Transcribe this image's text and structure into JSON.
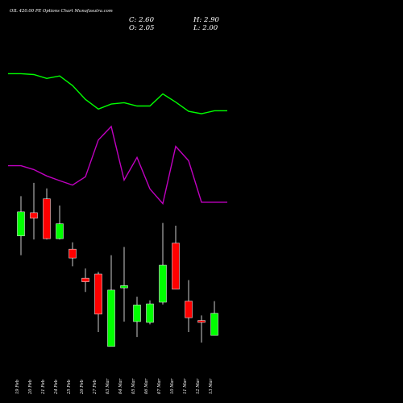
{
  "chart_data": {
    "type": "candlestick",
    "title": "OIL 420.00 PE Options Chart Munafasutra.com",
    "ohlc_readout": {
      "close": "C: 2.60",
      "high": "H: 2.90",
      "open": "O: 2.05",
      "low": "L: 2.00"
    },
    "categories": [
      "19 Feb",
      "20 Feb",
      "21 Feb",
      "24 Feb",
      "25 Feb",
      "26 Feb",
      "27 Feb",
      "03 Mar",
      "04 Mar",
      "05 Mar",
      "06 Mar",
      "07 Mar",
      "10 Mar",
      "11 Mar",
      "12 Mar",
      "13 Mar"
    ],
    "candles": [
      {
        "open": 3.18,
        "close": 4.05,
        "high": 4.62,
        "low": 2.48,
        "direction": "up"
      },
      {
        "open": 4.02,
        "close": 3.82,
        "high": 5.1,
        "low": 3.05,
        "direction": "down"
      },
      {
        "open": 4.52,
        "close": 3.08,
        "high": 4.9,
        "low": 3.05,
        "direction": "down"
      },
      {
        "open": 3.08,
        "close": 3.62,
        "high": 4.28,
        "low": 3.05,
        "direction": "up"
      },
      {
        "open": 2.7,
        "close": 2.38,
        "high": 2.95,
        "low": 2.08,
        "direction": "down"
      },
      {
        "open": 1.65,
        "close": 1.52,
        "high": 2.0,
        "low": 1.15,
        "direction": "down"
      },
      {
        "open": 1.8,
        "close": 0.35,
        "high": 1.88,
        "low": -0.3,
        "direction": "down"
      },
      {
        "open": -0.82,
        "close": 1.22,
        "high": 2.48,
        "low": -0.82,
        "direction": "up"
      },
      {
        "open": 1.3,
        "close": 1.38,
        "high": 2.78,
        "low": 0.08,
        "direction": "up"
      },
      {
        "open": 0.08,
        "close": 0.68,
        "high": 0.98,
        "low": -0.48,
        "direction": "up"
      },
      {
        "open": 0.05,
        "close": 0.72,
        "high": 0.85,
        "low": -0.02,
        "direction": "up"
      },
      {
        "open": 0.78,
        "close": 2.12,
        "high": 3.65,
        "low": 0.7,
        "direction": "up"
      },
      {
        "open": 2.92,
        "close": 1.25,
        "high": 3.55,
        "low": 1.25,
        "direction": "down"
      },
      {
        "open": 0.82,
        "close": 0.22,
        "high": 1.58,
        "low": -0.3,
        "direction": "down"
      },
      {
        "open": 0.12,
        "close": 0.05,
        "high": 0.3,
        "low": -0.68,
        "direction": "down"
      },
      {
        "open": -0.42,
        "close": 0.38,
        "high": 0.82,
        "low": -0.42,
        "direction": "up"
      }
    ],
    "line_series": [
      {
        "color": "#00ff00",
        "x": [
          -1,
          0,
          1,
          2,
          3,
          4,
          5,
          6,
          7,
          8,
          9,
          10,
          11,
          12,
          13,
          14,
          15,
          16
        ],
        "values": [
          9.05,
          9.05,
          9.02,
          8.88,
          8.97,
          8.62,
          8.12,
          7.77,
          7.95,
          8.0,
          7.88,
          7.88,
          8.32,
          8.02,
          7.69,
          7.6,
          7.71,
          7.71
        ]
      },
      {
        "color": "#c000c0",
        "x": [
          -1,
          0,
          1,
          2,
          3,
          4,
          5,
          6,
          7,
          8,
          9,
          10,
          11,
          12,
          13,
          14,
          15,
          16
        ],
        "values": [
          5.72,
          5.72,
          5.58,
          5.35,
          5.18,
          5.02,
          5.32,
          6.65,
          7.14,
          5.2,
          6.02,
          4.88,
          4.35,
          6.42,
          5.9,
          4.4,
          4.4,
          4.4
        ]
      }
    ],
    "y_range": [
      -1.7,
      10.9
    ],
    "colors": {
      "up": "#00ff00",
      "down": "#ff0000",
      "background": "#000000",
      "text": "#ffffff"
    }
  }
}
